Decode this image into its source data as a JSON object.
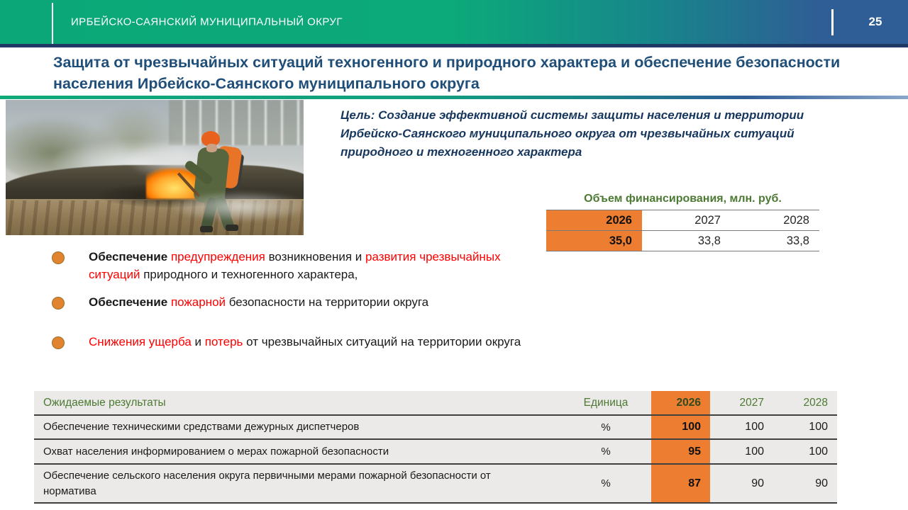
{
  "header": {
    "title": "ИРБЕЙСКО-САЯНСКИЙ МУНИЦИПАЛЬНЫЙ ОКРУГ",
    "page_number": "25"
  },
  "slide": {
    "title": "Защита от чрезвычайных ситуаций техногенного и природного характера и обеспечение безопасности населения Ирбейско-Саянского муниципального округа",
    "goal": "Цель: Создание эффективной системы защиты населения и территории Ирбейско-Саянского муниципального округа от чрезвычайных ситуаций природного и техногенного характера"
  },
  "photo": {
    "description": "firefighter-in-green-uniform-with-orange-helmet-extinguishing-burning-grass"
  },
  "financing": {
    "caption": "Объем финансирования, млн. руб.",
    "years": [
      "2026",
      "2027",
      "2028"
    ],
    "values": [
      "35,0",
      "33,8",
      "33,8"
    ]
  },
  "objectives": [
    {
      "parts": [
        [
          "Обеспечение ",
          "bold"
        ],
        [
          "предупреждения ",
          "red"
        ],
        [
          "возникновения и ",
          "plain"
        ],
        [
          "развития чрезвычайных ситуаций ",
          "red"
        ],
        [
          "природного и техногенного характера,",
          "plain"
        ]
      ]
    },
    {
      "parts": [
        [
          "Обеспечение ",
          "bold"
        ],
        [
          "пожарной ",
          "red"
        ],
        [
          "безопасности на территории округа",
          "plain"
        ]
      ]
    },
    {
      "parts": [
        [
          "Снижения ущерба",
          "red"
        ],
        [
          " и ",
          "plain"
        ],
        [
          "потерь",
          "red"
        ],
        [
          " от чрезвычайных ситуаций  на территории округа",
          "plain"
        ]
      ]
    }
  ],
  "results_table": {
    "headers": [
      "Ожидаемые результаты",
      "Единица",
      "2026",
      "2027",
      "2028"
    ],
    "rows": [
      {
        "name": "Обеспечение техническими средствами дежурных диспетчеров",
        "unit": "%",
        "y2026": "100",
        "y2027": "100",
        "y2028": "100"
      },
      {
        "name": "Охват населения информированием о мерах пожарной безопасности",
        "unit": "%",
        "y2026": "95",
        "y2027": "100",
        "y2028": "100"
      },
      {
        "name": "Обеспечение сельского населения округа первичными мерами пожарной безопасности от норматива",
        "unit": "%",
        "y2026": "87",
        "y2027": "90",
        "y2028": "90"
      }
    ]
  },
  "colors": {
    "header_green": "#0BA778",
    "header_blue": "#2E5E95",
    "navy_border": "#203864",
    "title_blue": "#1F4E79",
    "goal_navy": "#17375E",
    "table_green": "#4C7A33",
    "accent_orange": "#ED7D31",
    "highlight_red": "#FE0000",
    "table_row_gray": "#ECEAE8"
  }
}
